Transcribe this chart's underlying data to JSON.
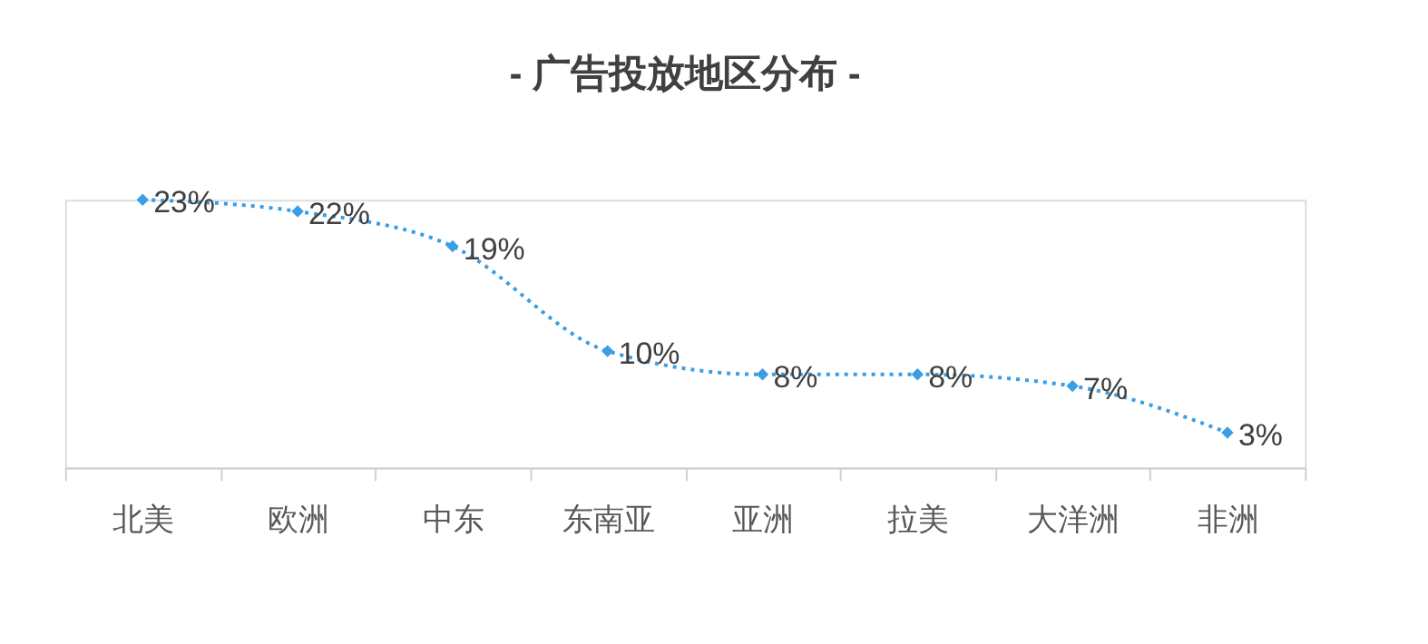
{
  "chart_data": {
    "type": "line",
    "title": "- 广告投放地区分布 -",
    "categories": [
      "北美",
      "欧洲",
      "中东",
      "东南亚",
      "亚洲",
      "拉美",
      "大洋洲",
      "非洲"
    ],
    "series": [
      {
        "color": "#3a9ee4",
        "values": [
          23,
          22,
          19,
          10,
          8,
          8,
          7,
          3
        ],
        "value_labels": [
          "23%",
          "22%",
          "19%",
          "10%",
          "8%",
          "8%",
          "7%",
          "3%"
        ]
      }
    ],
    "marker": "diamond",
    "line_style": "dotted",
    "grid": false
  }
}
